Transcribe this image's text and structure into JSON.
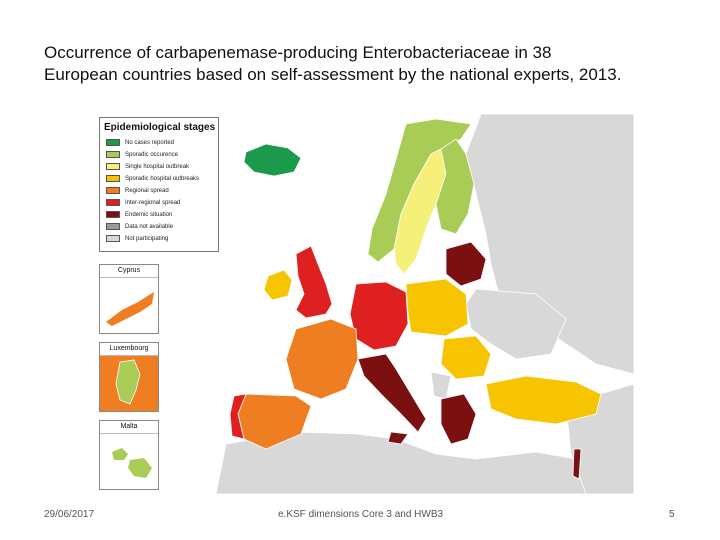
{
  "title": {
    "line1": "Occurrence of carbapenemase-producing Enterobacteriaceae in 38",
    "line2": "European countries based on self-assessment by the national experts, 2013."
  },
  "legend": {
    "title": "Epidemiological stages",
    "items": [
      {
        "label": "No cases reported",
        "color": "#1a9a4a"
      },
      {
        "label": "Sporadic occurence",
        "color": "#a8cc55"
      },
      {
        "label": "Single hospital outbreak",
        "color": "#f5f07a"
      },
      {
        "label": "Sporadic hospital outbreaks",
        "color": "#f6c400"
      },
      {
        "label": "Regional spread",
        "color": "#ef7d22"
      },
      {
        "label": "Inter-regional spread",
        "color": "#de2020"
      },
      {
        "label": "Endemic situation",
        "color": "#7a1010"
      },
      {
        "label": "Data not available",
        "color": "#9a9a9a"
      },
      {
        "label": "Not participating",
        "color": "#d8d8d8"
      }
    ]
  },
  "insets": [
    {
      "label": "Cyprus",
      "color": "#ef7d22"
    },
    {
      "label": "Luxembourg",
      "color": "#a8cc55"
    },
    {
      "label": "Malta",
      "color": "#a8cc55"
    }
  ],
  "countries": [
    {
      "name": "Iceland",
      "color": "#1a9a4a"
    },
    {
      "name": "Norway",
      "color": "#a8cc55"
    },
    {
      "name": "Sweden",
      "color": "#f5f07a"
    },
    {
      "name": "Finland",
      "color": "#a8cc55"
    },
    {
      "name": "Ireland",
      "color": "#f6c400"
    },
    {
      "name": "United Kingdom",
      "color": "#de2020"
    },
    {
      "name": "France",
      "color": "#ef7d22"
    },
    {
      "name": "Spain",
      "color": "#ef7d22"
    },
    {
      "name": "Portugal",
      "color": "#de2020"
    },
    {
      "name": "Germany",
      "color": "#de2020"
    },
    {
      "name": "Poland",
      "color": "#f6c400"
    },
    {
      "name": "Italy",
      "color": "#7a1010"
    },
    {
      "name": "Greece",
      "color": "#7a1010"
    },
    {
      "name": "Turkey",
      "color": "#f6c400"
    },
    {
      "name": "Romania",
      "color": "#f6c400"
    },
    {
      "name": "Belarus",
      "color": "#7a1010"
    },
    {
      "name": "Israel",
      "color": "#7a1010"
    },
    {
      "name": "Russia",
      "color": "#d8d8d8"
    },
    {
      "name": "Ukraine",
      "color": "#d8d8d8"
    }
  ],
  "footer": {
    "date": "29/06/2017",
    "center": "e.KSF dimensions Core 3 and HWB3",
    "page": "5"
  }
}
